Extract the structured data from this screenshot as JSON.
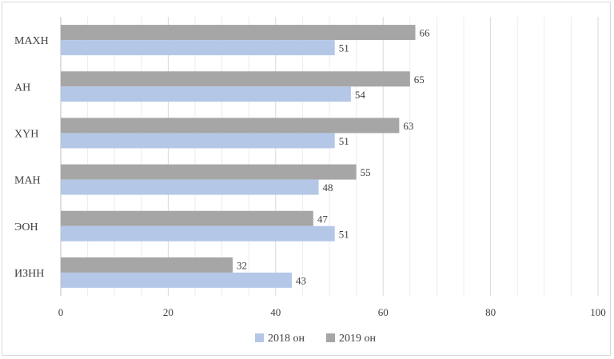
{
  "chart_data": {
    "type": "bar",
    "orientation": "horizontal",
    "categories": [
      "МАХН",
      "АН",
      "ХҮН",
      "МАН",
      "ЭОН",
      "ИЗНН"
    ],
    "series": [
      {
        "name": "2019 он",
        "values": [
          66,
          65,
          63,
          55,
          47,
          32
        ],
        "color": "#a6a6a6"
      },
      {
        "name": "2018 он",
        "values": [
          51,
          54,
          51,
          48,
          51,
          43
        ],
        "color": "#b4c7e7"
      }
    ],
    "xlim": [
      0,
      100
    ],
    "xticks": [
      0,
      20,
      40,
      60,
      80,
      100
    ],
    "grid": true,
    "legend_position": "bottom",
    "legend_order": [
      "2018 он",
      "2019 он"
    ],
    "data_labels": true
  }
}
